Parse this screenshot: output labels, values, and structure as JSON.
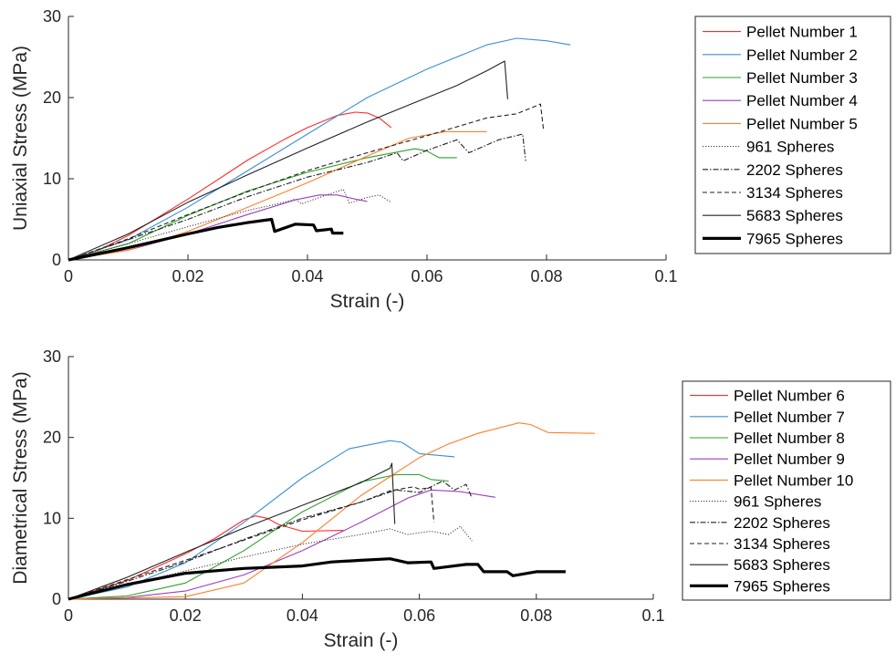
{
  "chart_data": [
    {
      "type": "line",
      "xlabel": "Strain (-)",
      "ylabel": "Uniaxial Stress (MPa)",
      "xlim": [
        0,
        0.1
      ],
      "ylim": [
        0,
        30
      ],
      "xticks": [
        "0",
        "0.02",
        "0.04",
        "0.06",
        "0.08",
        "0.1"
      ],
      "yticks": [
        "0",
        "10",
        "20",
        "30"
      ],
      "legend_position": "outside-right",
      "series": [
        {
          "name": "Pellet Number 1",
          "color": "#ff2a2a",
          "style": "solid",
          "width": 1.1,
          "points": [
            [
              0,
              0
            ],
            [
              0.005,
              1.2
            ],
            [
              0.01,
              3
            ],
            [
              0.02,
              7.5
            ],
            [
              0.03,
              12.3
            ],
            [
              0.036,
              14.8
            ],
            [
              0.04,
              16.3
            ],
            [
              0.045,
              17.8
            ],
            [
              0.048,
              18.2
            ],
            [
              0.05,
              18.1
            ],
            [
              0.052,
              17.5
            ],
            [
              0.054,
              16.3
            ]
          ]
        },
        {
          "name": "Pellet Number 2",
          "color": "#3a8fd6",
          "style": "solid",
          "width": 1.1,
          "points": [
            [
              0,
              0
            ],
            [
              0.01,
              2.5
            ],
            [
              0.02,
              6.5
            ],
            [
              0.03,
              11
            ],
            [
              0.04,
              15.5
            ],
            [
              0.05,
              20
            ],
            [
              0.06,
              23.5
            ],
            [
              0.07,
              26.5
            ],
            [
              0.075,
              27.3
            ],
            [
              0.08,
              27
            ],
            [
              0.084,
              26.5
            ]
          ]
        },
        {
          "name": "Pellet Number 3",
          "color": "#2ca02c",
          "style": "solid",
          "width": 1.1,
          "points": [
            [
              0,
              0
            ],
            [
              0.01,
              2
            ],
            [
              0.02,
              5.5
            ],
            [
              0.03,
              8.5
            ],
            [
              0.04,
              10.8
            ],
            [
              0.05,
              12.6
            ],
            [
              0.058,
              13.7
            ],
            [
              0.06,
              13.4
            ],
            [
              0.062,
              12.6
            ],
            [
              0.065,
              12.6
            ]
          ]
        },
        {
          "name": "Pellet Number 4",
          "color": "#9b3fc0",
          "style": "solid",
          "width": 1.1,
          "points": [
            [
              0,
              0
            ],
            [
              0.01,
              1.2
            ],
            [
              0.02,
              3.2
            ],
            [
              0.03,
              5.6
            ],
            [
              0.038,
              7.4
            ],
            [
              0.042,
              8
            ],
            [
              0.045,
              8
            ],
            [
              0.048,
              7.5
            ],
            [
              0.05,
              7.2
            ]
          ]
        },
        {
          "name": "Pellet Number 5",
          "color": "#ff7f2a",
          "style": "solid",
          "width": 1.1,
          "points": [
            [
              0,
              0
            ],
            [
              0.01,
              1.2
            ],
            [
              0.02,
              3.5
            ],
            [
              0.03,
              6.5
            ],
            [
              0.04,
              9.5
            ],
            [
              0.05,
              12.8
            ],
            [
              0.057,
              15
            ],
            [
              0.063,
              15.8
            ],
            [
              0.07,
              15.8
            ]
          ]
        },
        {
          "name": "961 Spheres",
          "color": "#444444",
          "style": "dotted",
          "width": 1.1,
          "points": [
            [
              0,
              0
            ],
            [
              0.01,
              2
            ],
            [
              0.02,
              4.1
            ],
            [
              0.03,
              6.1
            ],
            [
              0.035,
              6.9
            ],
            [
              0.038,
              7.5
            ],
            [
              0.039,
              6.9
            ],
            [
              0.042,
              7.7
            ],
            [
              0.046,
              8.7
            ],
            [
              0.047,
              7
            ],
            [
              0.05,
              7.7
            ],
            [
              0.052,
              8
            ],
            [
              0.054,
              7.1
            ]
          ]
        },
        {
          "name": "2202 Spheres",
          "color": "#222222",
          "style": "dashdot",
          "width": 1.1,
          "points": [
            [
              0,
              0
            ],
            [
              0.01,
              2.5
            ],
            [
              0.02,
              5
            ],
            [
              0.03,
              7.8
            ],
            [
              0.04,
              10.2
            ],
            [
              0.05,
              12
            ],
            [
              0.055,
              13.2
            ],
            [
              0.056,
              12.2
            ],
            [
              0.06,
              13.5
            ],
            [
              0.065,
              14.8
            ],
            [
              0.067,
              13.2
            ],
            [
              0.072,
              14.8
            ],
            [
              0.076,
              15.5
            ],
            [
              0.0765,
              12.2
            ]
          ]
        },
        {
          "name": "3134 Spheres",
          "color": "#222222",
          "style": "dashed",
          "width": 1.1,
          "points": [
            [
              0,
              0
            ],
            [
              0.01,
              2.6
            ],
            [
              0.02,
              5.6
            ],
            [
              0.03,
              8.4
            ],
            [
              0.04,
              11
            ],
            [
              0.05,
              13.2
            ],
            [
              0.06,
              15.3
            ],
            [
              0.07,
              17.5
            ],
            [
              0.075,
              18
            ],
            [
              0.079,
              19.2
            ],
            [
              0.0795,
              16
            ]
          ]
        },
        {
          "name": "5683 Spheres",
          "color": "#222222",
          "style": "solid",
          "width": 1.1,
          "points": [
            [
              0,
              0
            ],
            [
              0.01,
              3.2
            ],
            [
              0.02,
              7.1
            ],
            [
              0.03,
              10.5
            ],
            [
              0.04,
              13.8
            ],
            [
              0.05,
              17
            ],
            [
              0.06,
              20
            ],
            [
              0.065,
              21.5
            ],
            [
              0.07,
              23.3
            ],
            [
              0.073,
              24.5
            ],
            [
              0.0735,
              19.8
            ]
          ]
        },
        {
          "name": "7965 Spheres",
          "color": "#000000",
          "style": "solid",
          "width": 3.2,
          "points": [
            [
              0,
              0
            ],
            [
              0.01,
              1.5
            ],
            [
              0.02,
              3.2
            ],
            [
              0.025,
              4
            ],
            [
              0.03,
              4.6
            ],
            [
              0.034,
              5
            ],
            [
              0.0345,
              3.5
            ],
            [
              0.038,
              4.4
            ],
            [
              0.041,
              4.3
            ],
            [
              0.0415,
              3.6
            ],
            [
              0.044,
              3.8
            ],
            [
              0.0442,
              3.3
            ],
            [
              0.046,
              3.3
            ]
          ]
        }
      ]
    },
    {
      "type": "line",
      "xlabel": "Strain (-)",
      "ylabel": "Diametrical Stress (MPa)",
      "xlim": [
        0,
        0.1
      ],
      "ylim": [
        0,
        30
      ],
      "xticks": [
        "0",
        "0.02",
        "0.04",
        "0.06",
        "0.08",
        "0.1"
      ],
      "yticks": [
        "0",
        "10",
        "20",
        "30"
      ],
      "legend_position": "outside-right",
      "series": [
        {
          "name": "Pellet Number 6",
          "color": "#ff2a2a",
          "style": "solid",
          "width": 1.1,
          "points": [
            [
              0,
              0
            ],
            [
              0.01,
              2.3
            ],
            [
              0.02,
              5.6
            ],
            [
              0.025,
              7.5
            ],
            [
              0.03,
              9.8
            ],
            [
              0.032,
              10.3
            ],
            [
              0.034,
              10
            ],
            [
              0.036,
              9.2
            ],
            [
              0.04,
              8.4
            ],
            [
              0.047,
              8.5
            ]
          ]
        },
        {
          "name": "Pellet Number 7",
          "color": "#3a8fd6",
          "style": "solid",
          "width": 1.1,
          "points": [
            [
              0,
              0
            ],
            [
              0.01,
              1.5
            ],
            [
              0.02,
              4.5
            ],
            [
              0.03,
              9.5
            ],
            [
              0.04,
              15
            ],
            [
              0.048,
              18.6
            ],
            [
              0.055,
              19.6
            ],
            [
              0.057,
              19.4
            ],
            [
              0.06,
              18
            ],
            [
              0.066,
              17.6
            ]
          ]
        },
        {
          "name": "Pellet Number 8",
          "color": "#2ca02c",
          "style": "solid",
          "width": 1.1,
          "points": [
            [
              0,
              0
            ],
            [
              0.01,
              0.4
            ],
            [
              0.02,
              2
            ],
            [
              0.03,
              6
            ],
            [
              0.04,
              10.8
            ],
            [
              0.05,
              14.5
            ],
            [
              0.056,
              15.4
            ],
            [
              0.06,
              15.4
            ],
            [
              0.062,
              14.8
            ],
            [
              0.065,
              14.6
            ]
          ]
        },
        {
          "name": "Pellet Number 9",
          "color": "#9b3fc0",
          "style": "solid",
          "width": 1.1,
          "points": [
            [
              0,
              0
            ],
            [
              0.01,
              0.2
            ],
            [
              0.02,
              1
            ],
            [
              0.03,
              3
            ],
            [
              0.04,
              6
            ],
            [
              0.05,
              9.5
            ],
            [
              0.058,
              12.5
            ],
            [
              0.062,
              13.5
            ],
            [
              0.067,
              13.3
            ],
            [
              0.073,
              12.6
            ]
          ]
        },
        {
          "name": "Pellet Number 10",
          "color": "#ff7f2a",
          "style": "solid",
          "width": 1.1,
          "points": [
            [
              0,
              0
            ],
            [
              0.02,
              0.3
            ],
            [
              0.03,
              2
            ],
            [
              0.04,
              7
            ],
            [
              0.05,
              12.8
            ],
            [
              0.06,
              17.5
            ],
            [
              0.065,
              19.2
            ],
            [
              0.07,
              20.5
            ],
            [
              0.077,
              21.8
            ],
            [
              0.079,
              21.6
            ],
            [
              0.082,
              20.6
            ],
            [
              0.09,
              20.5
            ]
          ]
        },
        {
          "name": "961 Spheres",
          "color": "#444444",
          "style": "dotted",
          "width": 1.1,
          "points": [
            [
              0,
              0
            ],
            [
              0.01,
              1.7
            ],
            [
              0.02,
              3.5
            ],
            [
              0.03,
              5.2
            ],
            [
              0.04,
              6.8
            ],
            [
              0.05,
              8
            ],
            [
              0.055,
              8.7
            ],
            [
              0.058,
              8
            ],
            [
              0.062,
              8.4
            ],
            [
              0.065,
              8
            ],
            [
              0.067,
              9
            ],
            [
              0.069,
              7.2
            ]
          ]
        },
        {
          "name": "2202 Spheres",
          "color": "#222222",
          "style": "dashdot",
          "width": 1.1,
          "points": [
            [
              0,
              0
            ],
            [
              0.01,
              2.2
            ],
            [
              0.02,
              4.6
            ],
            [
              0.03,
              7.4
            ],
            [
              0.04,
              10
            ],
            [
              0.05,
              12
            ],
            [
              0.056,
              13.5
            ],
            [
              0.06,
              13.2
            ],
            [
              0.064,
              14.6
            ],
            [
              0.066,
              13.5
            ],
            [
              0.068,
              14.2
            ],
            [
              0.069,
              12.5
            ]
          ]
        },
        {
          "name": "3134 Spheres",
          "color": "#222222",
          "style": "dashed",
          "width": 1.1,
          "points": [
            [
              0,
              0
            ],
            [
              0.01,
              2.4
            ],
            [
              0.02,
              4.8
            ],
            [
              0.03,
              7.3
            ],
            [
              0.04,
              9.8
            ],
            [
              0.05,
              12
            ],
            [
              0.055,
              13.4
            ],
            [
              0.059,
              13.9
            ],
            [
              0.06,
              13.6
            ],
            [
              0.062,
              13.8
            ],
            [
              0.0625,
              9.5
            ]
          ]
        },
        {
          "name": "5683 Spheres",
          "color": "#222222",
          "style": "solid",
          "width": 1.1,
          "points": [
            [
              0,
              0
            ],
            [
              0.01,
              2.7
            ],
            [
              0.02,
              5.8
            ],
            [
              0.03,
              8.8
            ],
            [
              0.04,
              11.6
            ],
            [
              0.05,
              14.4
            ],
            [
              0.055,
              16.2
            ],
            [
              0.0553,
              16.8
            ],
            [
              0.0558,
              9.3
            ]
          ]
        },
        {
          "name": "7965 Spheres",
          "color": "#000000",
          "style": "solid",
          "width": 3.2,
          "points": [
            [
              0,
              0
            ],
            [
              0.01,
              1.8
            ],
            [
              0.02,
              3.2
            ],
            [
              0.03,
              3.8
            ],
            [
              0.04,
              4.1
            ],
            [
              0.045,
              4.6
            ],
            [
              0.05,
              4.8
            ],
            [
              0.055,
              5
            ],
            [
              0.058,
              4.5
            ],
            [
              0.062,
              4.6
            ],
            [
              0.0625,
              3.8
            ],
            [
              0.068,
              4.3
            ],
            [
              0.07,
              4.3
            ],
            [
              0.071,
              3.4
            ],
            [
              0.075,
              3.4
            ],
            [
              0.076,
              2.9
            ],
            [
              0.08,
              3.4
            ],
            [
              0.085,
              3.4
            ]
          ]
        }
      ]
    }
  ]
}
